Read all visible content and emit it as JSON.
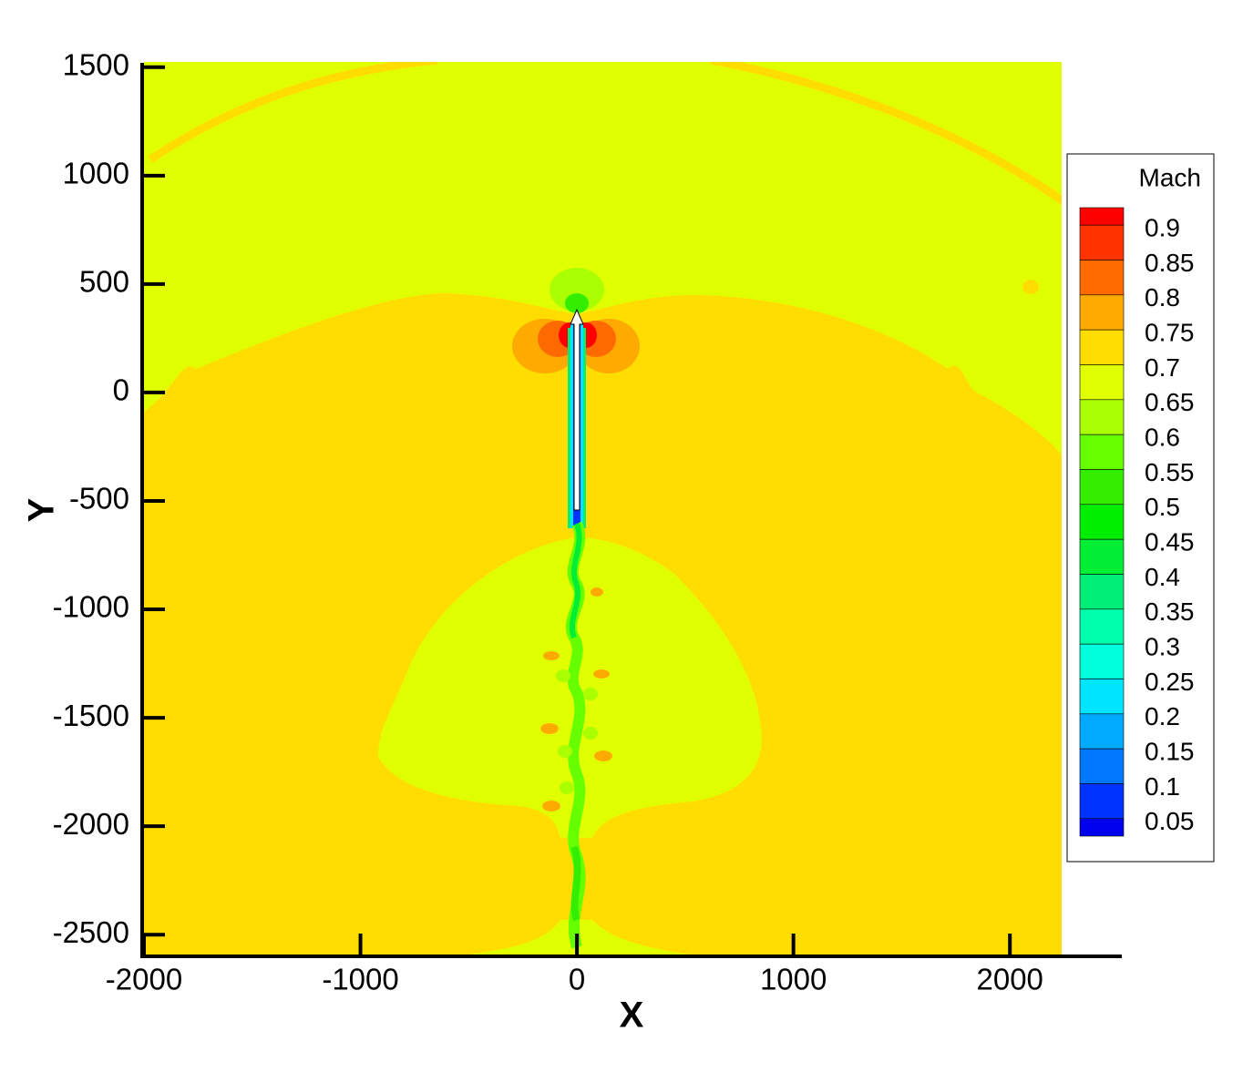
{
  "chart_data": {
    "type": "contour",
    "xlabel": "X",
    "ylabel": "Y",
    "xlim": [
      -2000,
      2500
    ],
    "ylim": [
      -2600,
      1520
    ],
    "xticks": [
      -2000,
      -1000,
      0,
      1000,
      2000
    ],
    "yticks": [
      -2500,
      -2000,
      -1500,
      -1000,
      -500,
      0,
      500,
      1000,
      1500
    ],
    "legend": {
      "title": "Mach",
      "levels": [
        0.9,
        0.85,
        0.8,
        0.75,
        0.7,
        0.65,
        0.6,
        0.55,
        0.5,
        0.45,
        0.4,
        0.35,
        0.3,
        0.25,
        0.2,
        0.15,
        0.1,
        0.05
      ],
      "colors": [
        "#ff0000",
        "#ff3300",
        "#ff6a00",
        "#ffaa00",
        "#ffdd00",
        "#e0ff00",
        "#aaff00",
        "#66ff00",
        "#33ee00",
        "#00ee00",
        "#00ee33",
        "#00ee77",
        "#00ffaa",
        "#00ffdd",
        "#00e5ff",
        "#00aaff",
        "#0077ff",
        "#0033ff",
        "#0000ee"
      ]
    }
  }
}
